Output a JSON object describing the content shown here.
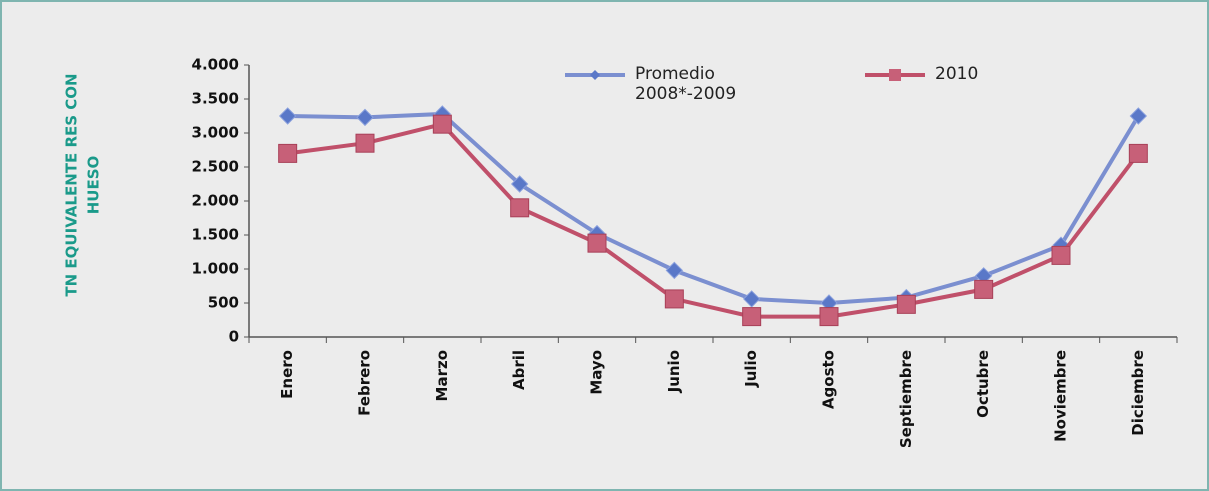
{
  "chart_data": {
    "type": "line",
    "ylabel": [
      "TN EQUIVALENTE RES CON",
      "HUESO"
    ],
    "categories": [
      "Enero",
      "Febrero",
      "Marzo",
      "Abril",
      "Mayo",
      "Junio",
      "Julio",
      "Agosto",
      "Septiembre",
      "Octubre",
      "Noviembre",
      "Diciembre"
    ],
    "series": [
      {
        "name": "Promedio 2008*-2009",
        "color": "#7b8fd0",
        "marker_color": "#5a78c8",
        "marker": "diamond",
        "values": [
          3250,
          3230,
          3280,
          2250,
          1520,
          980,
          560,
          500,
          580,
          900,
          1350,
          3250
        ]
      },
      {
        "name": "2010",
        "color": "#c0506a",
        "marker_color": "#c76078",
        "marker": "square",
        "values": [
          2700,
          2850,
          3130,
          1900,
          1380,
          560,
          300,
          300,
          480,
          700,
          1200,
          2700
        ]
      }
    ],
    "ylim": [
      0,
      4000
    ],
    "yticks": [
      0,
      500,
      {
        "value": 1000,
        "label": "1.000"
      },
      {
        "value": 1500,
        "label": "1.500"
      },
      {
        "value": 2000,
        "label": "2.000"
      },
      {
        "value": 2500,
        "label": "2.500"
      },
      {
        "value": 3000,
        "label": "3.000"
      },
      {
        "value": 3500,
        "label": "3.500"
      },
      {
        "value": 4000,
        "label": "4.000"
      }
    ],
    "grid": false
  }
}
